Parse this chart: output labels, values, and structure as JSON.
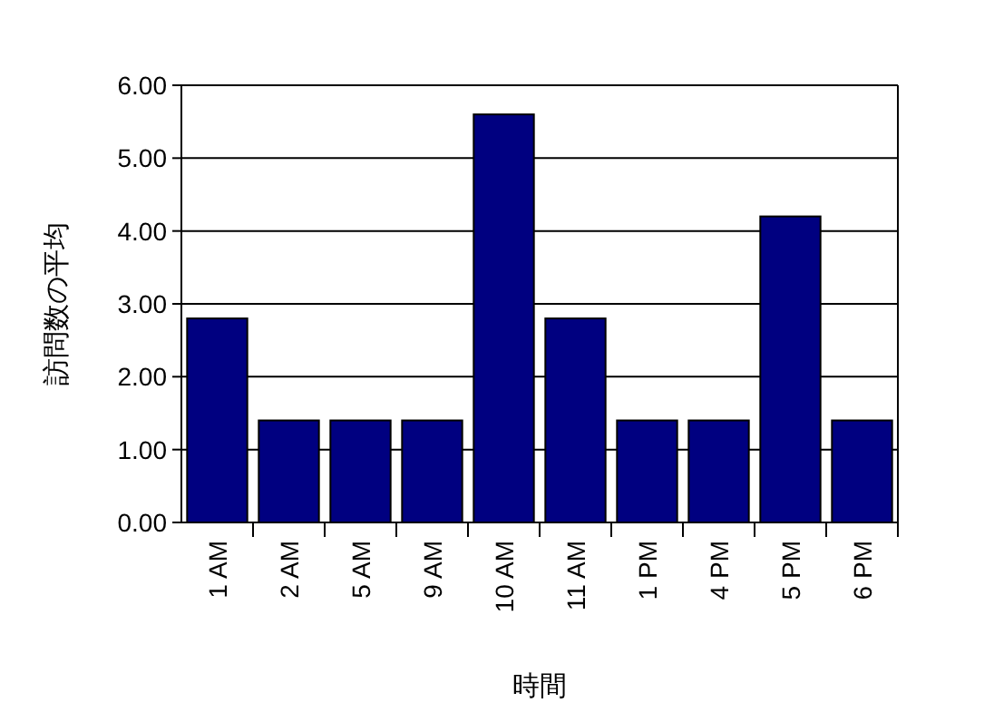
{
  "chart_data": {
    "type": "bar",
    "xlabel": "時間",
    "ylabel": "訪問数の平均",
    "categories": [
      "1 AM",
      "2 AM",
      "5 AM",
      "9 AM",
      "10 AM",
      "11 AM",
      "1 PM",
      "4 PM",
      "5 PM",
      "6 PM"
    ],
    "values": [
      2.8,
      1.4,
      1.4,
      1.4,
      5.6,
      2.8,
      1.4,
      1.4,
      4.2,
      1.4
    ],
    "color": "#000080",
    "ylim": [
      0,
      6
    ],
    "yticks": [
      {
        "value": 0,
        "label": "0.00"
      },
      {
        "value": 1,
        "label": "1.00"
      },
      {
        "value": 2,
        "label": "2.00"
      },
      {
        "value": 3,
        "label": "3.00"
      },
      {
        "value": 4,
        "label": "4.00"
      },
      {
        "value": 5,
        "label": "5.00"
      },
      {
        "value": 6,
        "label": "6.00"
      }
    ],
    "grid": "y"
  }
}
